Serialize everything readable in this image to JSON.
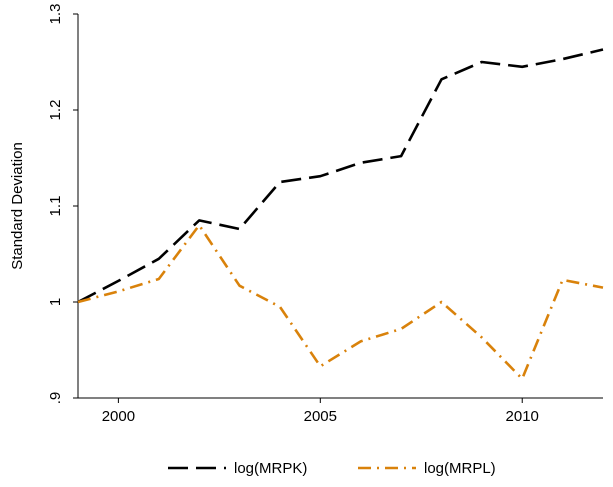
{
  "chart_data": {
    "type": "line",
    "title": "",
    "xlabel": "",
    "ylabel": "Standard Deviation",
    "xlim": [
      1999,
      2012
    ],
    "ylim": [
      0.9,
      1.3
    ],
    "x_ticks": [
      2000,
      2005,
      2010
    ],
    "x_tick_labels": [
      "2000",
      "2005",
      "2010"
    ],
    "y_ticks": [
      0.9,
      1.0,
      1.1,
      1.2,
      1.3
    ],
    "y_tick_labels": [
      ".9",
      "1",
      "1.1",
      "1.2",
      "1.3"
    ],
    "grid": false,
    "legend_position": "bottom",
    "x": [
      1999,
      2000,
      2001,
      2002,
      2003,
      2004,
      2005,
      2006,
      2007,
      2008,
      2009,
      2010,
      2011,
      2012
    ],
    "series": [
      {
        "name": "log(MRPK)",
        "color": "#000000",
        "dash": "long-dash",
        "values": [
          1.0,
          1.022,
          1.045,
          1.085,
          1.076,
          1.125,
          1.131,
          1.145,
          1.152,
          1.232,
          1.25,
          1.245,
          1.253,
          1.263
        ]
      },
      {
        "name": "log(MRPL)",
        "color": "#d9820b",
        "dash": "dash-dot",
        "values": [
          1.0,
          1.011,
          1.024,
          1.08,
          1.017,
          0.995,
          0.933,
          0.959,
          0.972,
          1.0,
          0.963,
          0.92,
          1.023,
          1.015
        ]
      }
    ]
  }
}
